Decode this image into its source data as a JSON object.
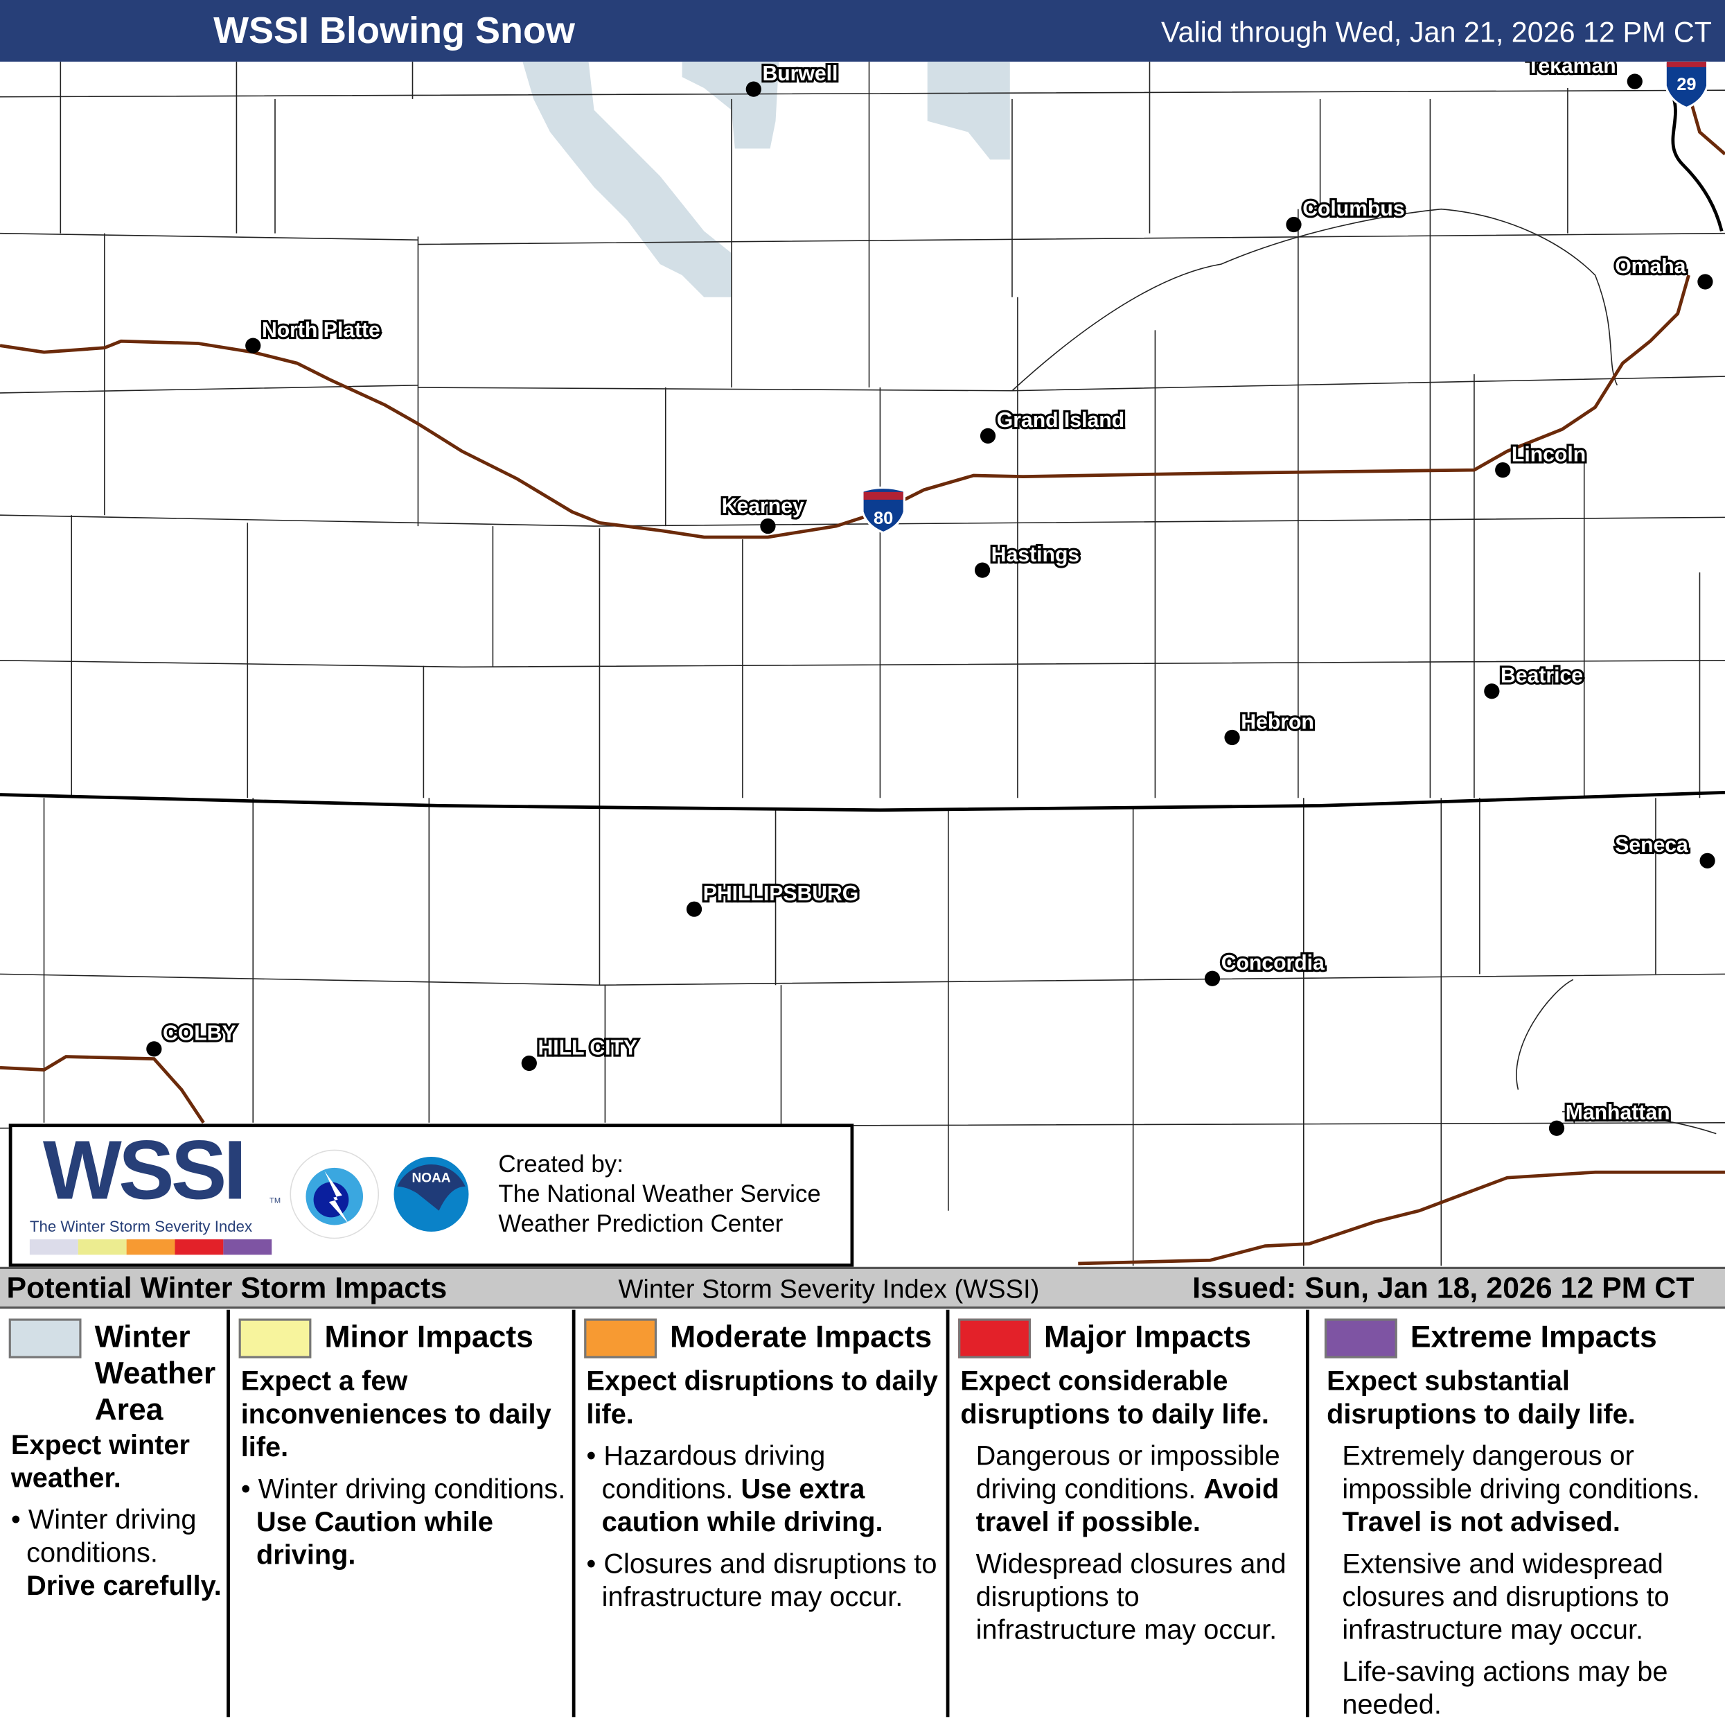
{
  "header": {
    "title": "WSSI Blowing Snow",
    "valid": "Valid through Wed, Jan 21, 2026 12 PM CT"
  },
  "colors": {
    "header_bg": "#273f78",
    "winter_weather_area": "#d3dfe6",
    "minor": "#f7f49d",
    "moderate": "#f79a32",
    "major": "#e32129",
    "extreme": "#7e54a3",
    "interstate": "#6b2a0a"
  },
  "map": {
    "highways": [
      "80",
      "29"
    ],
    "cities": [
      {
        "name": "Burwell"
      },
      {
        "name": "Tekamah"
      },
      {
        "name": "Columbus"
      },
      {
        "name": "Omaha"
      },
      {
        "name": "North Platte"
      },
      {
        "name": "Grand Island"
      },
      {
        "name": "Lincoln"
      },
      {
        "name": "Kearney"
      },
      {
        "name": "Hastings"
      },
      {
        "name": "Beatrice"
      },
      {
        "name": "Hebron"
      },
      {
        "name": "Seneca"
      },
      {
        "name": "PHILLIPSBURG"
      },
      {
        "name": "Concordia"
      },
      {
        "name": "COLBY"
      },
      {
        "name": "HILL CITY"
      },
      {
        "name": "Manhattan"
      }
    ]
  },
  "logo": {
    "wssi": "WSSI",
    "tm": "TM",
    "subtitle": "The Winter Storm Severity Index",
    "created_by": "Created by:",
    "org1": "The National Weather Service",
    "org2": "Weather Prediction Center",
    "nws": "NATIONAL WEATHER SERVICE",
    "noaa": "NOAA"
  },
  "band": {
    "title": "Potential Winter Storm Impacts",
    "index": "Winter Storm Severity Index (WSSI)",
    "issued": "Issued: Sun, Jan 18, 2026 12 PM CT"
  },
  "legend": [
    {
      "title": "Winter Weather Area",
      "expect": "Expect winter weather.",
      "lines": [
        "Winter driving conditions.",
        "Drive carefully."
      ]
    },
    {
      "title": "Minor Impacts",
      "expect": "Expect a few inconveniences to daily life.",
      "lines": [
        "Winter driving conditions.",
        "Use Caution while driving."
      ]
    },
    {
      "title": "Moderate Impacts",
      "expect": "Expect disruptions to daily life.",
      "lines": [
        "Hazardous driving conditions.",
        "Use extra caution while driving.",
        "Closures and disruptions to infrastructure may occur."
      ]
    },
    {
      "title": "Major Impacts",
      "expect": "Expect considerable disruptions to daily life.",
      "lines": [
        "Dangerous or impossible driving conditions.",
        "Avoid travel if possible.",
        "Widespread closures and disruptions to infrastructure may occur."
      ]
    },
    {
      "title": "Extreme Impacts",
      "expect": "Expect substantial disruptions to daily life.",
      "lines": [
        "Extremely dangerous or impossible driving conditions.",
        "Travel is not advised.",
        "Extensive and widespread closures and disruptions to infrastructure may occur.",
        "Life-saving actions may be needed."
      ]
    }
  ]
}
